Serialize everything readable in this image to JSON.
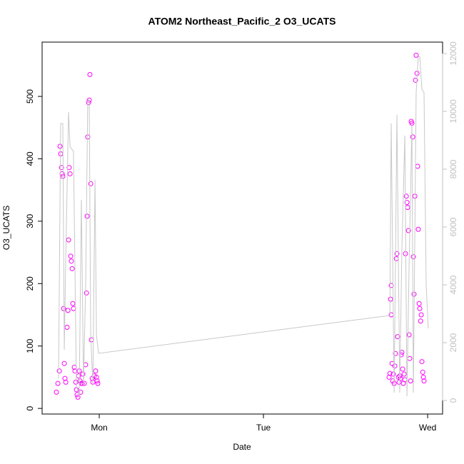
{
  "chart_data": {
    "type": "scatter",
    "title": "ATOM2 Northeast_Pacific_2 O3_UCATS",
    "x_label": "Date",
    "y_label": "O3_UCATS",
    "xlim": [
      -0.348,
      2.091
    ],
    "ylim": [
      -9,
      587
    ],
    "y2lim": [
      -469,
      12395
    ],
    "xticks": [
      {
        "value": 0,
        "label": "Mon"
      },
      {
        "value": 1,
        "label": "Tue"
      },
      {
        "value": 2,
        "label": "Wed"
      }
    ],
    "yticks": [
      0,
      100,
      200,
      300,
      400,
      500
    ],
    "y2ticks": [
      0,
      2000,
      4000,
      6000,
      8000,
      10000,
      12000
    ],
    "y2_color": "#c0c0c0",
    "series": [
      {
        "type": "scatter",
        "color": "#ff00ff",
        "x": [
          -0.261,
          -0.252,
          -0.243,
          -0.239,
          -0.235,
          -0.23,
          -0.226,
          -0.222,
          -0.217,
          -0.213,
          -0.209,
          -0.204,
          -0.196,
          -0.191,
          -0.187,
          -0.183,
          -0.178,
          -0.174,
          -0.17,
          -0.165,
          -0.161,
          -0.157,
          -0.152,
          -0.148,
          -0.143,
          -0.139,
          -0.135,
          -0.13,
          -0.126,
          -0.122,
          -0.117,
          -0.113,
          -0.109,
          -0.104,
          -0.1,
          -0.091,
          -0.083,
          -0.078,
          -0.074,
          -0.07,
          -0.065,
          -0.061,
          -0.057,
          -0.052,
          -0.048,
          -0.043,
          -0.039,
          -0.03,
          -0.022,
          -0.017,
          -0.013,
          -0.009,
          1.765,
          1.77,
          1.774,
          1.778,
          1.778,
          1.783,
          1.787,
          1.791,
          1.796,
          1.8,
          1.804,
          1.809,
          1.813,
          1.817,
          1.822,
          1.826,
          1.83,
          1.835,
          1.839,
          1.843,
          1.848,
          1.852,
          1.857,
          1.861,
          1.865,
          1.87,
          1.874,
          1.878,
          1.883,
          1.887,
          1.891,
          1.896,
          1.9,
          1.904,
          1.909,
          1.913,
          1.917,
          1.922,
          1.926,
          1.93,
          1.935,
          1.939,
          1.943,
          1.948,
          1.952,
          1.957,
          1.961,
          1.965,
          1.97,
          1.974,
          1.978
        ],
        "values": [
          26,
          40,
          60,
          420,
          408,
          386,
          376,
          372,
          160,
          72,
          48,
          42,
          130,
          157,
          270,
          386,
          376,
          244,
          236,
          224,
          168,
          160,
          66,
          60,
          42,
          30,
          22,
          18,
          52,
          60,
          44,
          26,
          40,
          40,
          55,
          40,
          70,
          185,
          308,
          435,
          490,
          494,
          535,
          360,
          110,
          48,
          42,
          52,
          60,
          50,
          44,
          40,
          50,
          56,
          175,
          197,
          150,
          72,
          44,
          55,
          40,
          68,
          88,
          240,
          248,
          115,
          50,
          42,
          52,
          48,
          86,
          90,
          63,
          40,
          55,
          46,
          248,
          340,
          330,
          322,
          285,
          118,
          80,
          44,
          460,
          457,
          435,
          243,
          183,
          340,
          526,
          566,
          537,
          388,
          287,
          168,
          160,
          140,
          150,
          75,
          58,
          50,
          44
        ]
      },
      {
        "type": "line",
        "color": "#c8c8c8",
        "axis": "y2",
        "x": [
          -0.248,
          -0.235,
          -0.222,
          -0.213,
          -0.204,
          -0.187,
          -0.178,
          -0.17,
          -0.157,
          -0.139,
          -0.122,
          -0.109,
          -0.096,
          -0.083,
          -0.07,
          -0.061,
          -0.052,
          -0.039,
          -0.026,
          -0.017,
          -0.004,
          1.77,
          1.778,
          1.796,
          1.813,
          1.83,
          1.843,
          1.861,
          1.874,
          1.887,
          1.904,
          1.913,
          1.93,
          1.943,
          1.952,
          1.965,
          1.978,
          1.991,
          2.004
        ],
        "values": [
          765,
          9580,
          9580,
          1750,
          4960,
          9975,
          8790,
          8710,
          8620,
          520,
          150,
          6940,
          520,
          3975,
          10400,
          10400,
          2250,
          520,
          7630,
          2250,
          1630,
          2940,
          9580,
          270,
          9880,
          270,
          5200,
          9160,
          150,
          4640,
          9530,
          270,
          10640,
          11880,
          11900,
          10770,
          10640,
          3975,
          2490
        ]
      }
    ]
  }
}
